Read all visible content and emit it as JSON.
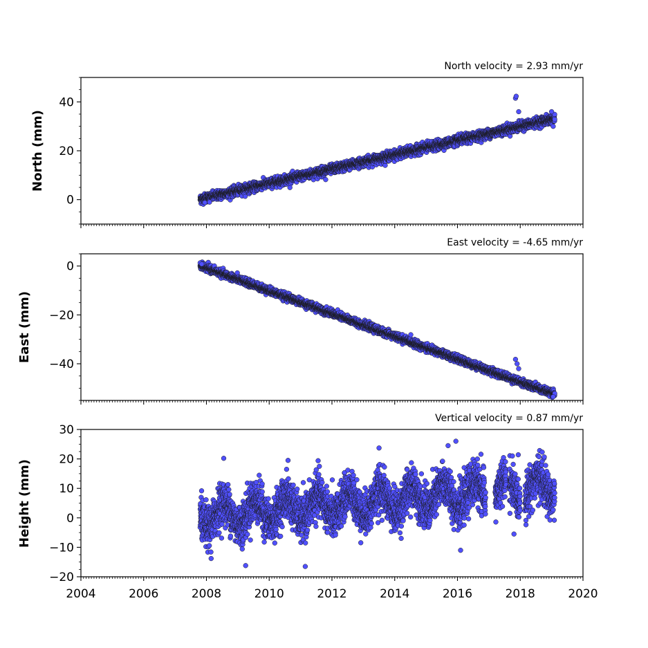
{
  "chart_data": [
    {
      "type": "scatter",
      "title": "North velocity = 2.93 mm/yr",
      "xlabel": "",
      "ylabel": "North (mm)",
      "xlim": [
        2004,
        2020
      ],
      "ylim": [
        -10,
        50
      ],
      "yticks": [
        "0",
        "20",
        "40"
      ],
      "xticks": [],
      "grid": false,
      "marker_color": "#5050ff",
      "edge_color": "#1a1a1a",
      "series": [
        {
          "trend": [
            [
              2007.8,
              0.2
            ],
            [
              2019.1,
              33.2
            ]
          ],
          "scatter_sd": 0.9,
          "outliers": [
            [
              2007.95,
              -1.2
            ],
            [
              2008.1,
              -1.0
            ],
            [
              2011.8,
              8.2
            ],
            [
              2017.85,
              41.5
            ],
            [
              2017.87,
              42.3
            ],
            [
              2017.95,
              36.0
            ],
            [
              2019.0,
              36.0
            ],
            [
              2019.05,
              30.0
            ]
          ]
        }
      ]
    },
    {
      "type": "scatter",
      "title": "East velocity = -4.65 mm/yr",
      "xlabel": "",
      "ylabel": "East (mm)",
      "xlim": [
        2004,
        2020
      ],
      "ylim": [
        -55,
        5
      ],
      "yticks": [
        "0",
        "−20",
        "−40"
      ],
      "xticks": [],
      "grid": false,
      "marker_color": "#5050ff",
      "edge_color": "#1a1a1a",
      "series": [
        {
          "trend": [
            [
              2007.8,
              0.2
            ],
            [
              2019.1,
              -52.5
            ]
          ],
          "scatter_sd": 0.7,
          "outliers": [
            [
              2007.8,
              1.3
            ],
            [
              2007.85,
              0.8
            ],
            [
              2017.85,
              -38.2
            ],
            [
              2017.9,
              -40.0
            ],
            [
              2017.95,
              -42.0
            ],
            [
              2019.05,
              -53.5
            ]
          ]
        }
      ]
    },
    {
      "type": "scatter",
      "title": "Vertical velocity = 0.87 mm/yr",
      "xlabel": "",
      "ylabel": "Height (mm)",
      "xlim": [
        2004,
        2020
      ],
      "ylim": [
        -20,
        30
      ],
      "yticks": [
        "−20",
        "−10",
        "0",
        "10",
        "20",
        "30"
      ],
      "xticks": [
        "2004",
        "2006",
        "2008",
        "2010",
        "2012",
        "2014",
        "2016",
        "2018",
        "2020"
      ],
      "grid": false,
      "marker_color": "#5050ff",
      "edge_color": "#1a1a1a",
      "series": [
        {
          "trend": [
            [
              2007.8,
              0.5
            ],
            [
              2019.1,
              10.5
            ]
          ],
          "seasonal_amplitude": 4,
          "scatter_sd": 3.5,
          "data_gaps": [
            [
              2016.9,
              2017.2
            ],
            [
              2017.55,
              2017.65
            ],
            [
              2018.0,
              2018.15
            ]
          ],
          "outliers": [
            [
              2008.15,
              -13.8
            ],
            [
              2008.55,
              20.2
            ],
            [
              2009.25,
              -16.2
            ],
            [
              2010.6,
              19.5
            ],
            [
              2011.15,
              -16.5
            ],
            [
              2011.6,
              17.5
            ],
            [
              2013.5,
              23.7
            ],
            [
              2015.7,
              24.5
            ],
            [
              2015.95,
              26.0
            ],
            [
              2016.1,
              -11.0
            ],
            [
              2016.75,
              21.6
            ],
            [
              2017.75,
              21.0
            ],
            [
              2017.8,
              -5.5
            ],
            [
              2018.7,
              22.3
            ]
          ]
        }
      ]
    }
  ]
}
